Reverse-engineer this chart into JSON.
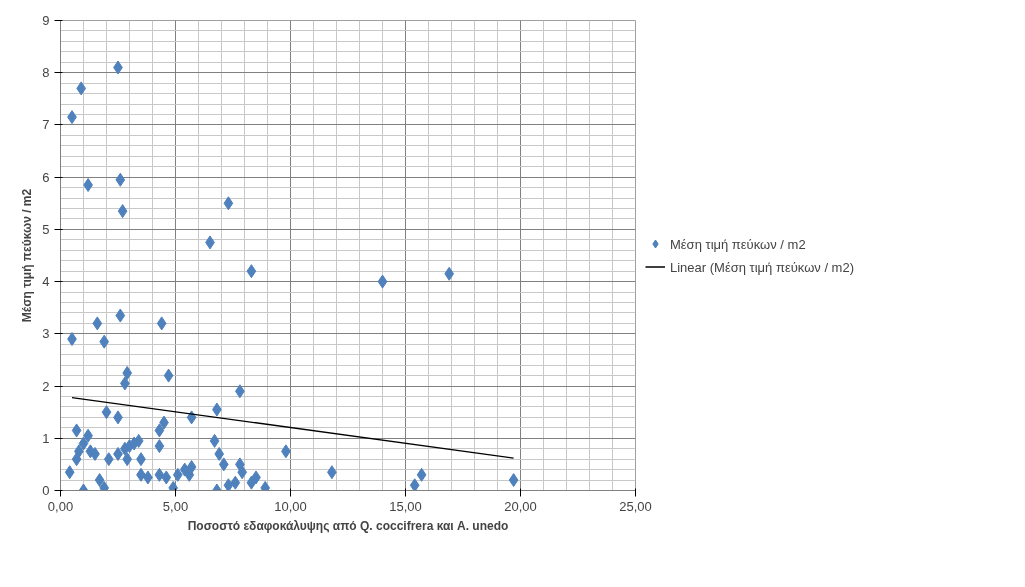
{
  "chart_data": {
    "type": "scatter",
    "xlabel": "Ποσοστό εδαφοκάλυψης από Q. coccifrera και A. unedo",
    "ylabel": "Μέση τιμή πεύκων / m2",
    "xlim": [
      0,
      25
    ],
    "ylim": [
      0,
      9
    ],
    "xticks": [
      {
        "value": 0,
        "label": "0,00"
      },
      {
        "value": 5,
        "label": "5,00"
      },
      {
        "value": 10,
        "label": "10,00"
      },
      {
        "value": 15,
        "label": "15,00"
      },
      {
        "value": 20,
        "label": "20,00"
      },
      {
        "value": 25,
        "label": "25,00"
      }
    ],
    "yticks": [
      0,
      1,
      2,
      3,
      4,
      5,
      6,
      7,
      8,
      9
    ],
    "grid": true,
    "legend": "right",
    "series": [
      {
        "name": "Μέση τιμή πεύκων / m2",
        "color": "#4f81bd",
        "marker": "diamond",
        "x": [
          0.5,
          0.9,
          2.5,
          1.2,
          2.6,
          2.7,
          6.5,
          7.3,
          8.3,
          14.0,
          16.9,
          0.5,
          1.6,
          1.9,
          2.6,
          4.4,
          2.9,
          2.8,
          4.7,
          7.8,
          6.8,
          5.7,
          2.0,
          2.5,
          4.5,
          4.3,
          0.7,
          1.2,
          1.0,
          0.8,
          0.7,
          1.3,
          1.5,
          2.1,
          2.5,
          2.8,
          3.0,
          3.2,
          3.4,
          2.9,
          3.5,
          4.3,
          0.4,
          1.0,
          1.7,
          1.9,
          3.5,
          3.8,
          4.3,
          4.6,
          4.9,
          5.1,
          5.4,
          5.6,
          5.7,
          6.7,
          6.9,
          6.8,
          7.1,
          7.3,
          7.6,
          7.8,
          7.9,
          8.3,
          8.5,
          8.9,
          9.8,
          11.8,
          15.4,
          15.7,
          19.7
        ],
        "values": [
          7.15,
          7.7,
          8.1,
          5.85,
          5.95,
          5.35,
          4.75,
          5.5,
          4.2,
          4.0,
          4.15,
          2.9,
          3.2,
          2.85,
          3.35,
          3.2,
          2.25,
          2.05,
          2.2,
          1.9,
          1.55,
          1.4,
          1.5,
          1.4,
          1.3,
          1.15,
          1.15,
          1.05,
          0.9,
          0.75,
          0.6,
          0.75,
          0.7,
          0.6,
          0.7,
          0.8,
          0.85,
          0.9,
          0.95,
          0.6,
          0.6,
          0.85,
          0.35,
          0.0,
          0.2,
          0.05,
          0.3,
          0.25,
          0.3,
          0.25,
          0.05,
          0.3,
          0.4,
          0.3,
          0.45,
          0.95,
          0.7,
          0.0,
          0.5,
          0.1,
          0.15,
          0.5,
          0.35,
          0.15,
          0.25,
          0.05,
          0.75,
          0.35,
          0.1,
          0.3,
          0.2
        ]
      },
      {
        "name": "Linear (Μέση τιμή πεύκων / m2)",
        "type": "line",
        "color": "#000000",
        "line_style": "solid",
        "marker": "none",
        "x": [
          0.5,
          19.7
        ],
        "values": [
          1.78,
          0.62
        ]
      }
    ]
  }
}
